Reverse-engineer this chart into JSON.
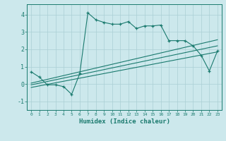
{
  "title": "",
  "xlabel": "Humidex (Indice chaleur)",
  "bg_color": "#cce8ec",
  "grid_color": "#aacfd4",
  "line_color": "#1a7a6e",
  "xlim": [
    -0.5,
    23.5
  ],
  "ylim": [
    -1.5,
    4.6
  ],
  "yticks": [
    -1,
    0,
    1,
    2,
    3,
    4
  ],
  "xticks": [
    0,
    1,
    2,
    3,
    4,
    5,
    6,
    7,
    8,
    9,
    10,
    11,
    12,
    13,
    14,
    15,
    16,
    17,
    18,
    19,
    20,
    21,
    22,
    23
  ],
  "line1_x": [
    0,
    1,
    2,
    3,
    4,
    5,
    6,
    7,
    8,
    9,
    10,
    11,
    12,
    13,
    14,
    15,
    16,
    17,
    18,
    19,
    20,
    21,
    22,
    23
  ],
  "line1_y": [
    0.7,
    0.4,
    -0.05,
    -0.05,
    -0.15,
    -0.6,
    0.6,
    4.1,
    3.7,
    3.55,
    3.45,
    3.45,
    3.6,
    3.2,
    3.35,
    3.35,
    3.4,
    2.5,
    2.5,
    2.5,
    2.2,
    1.65,
    0.75,
    1.9
  ],
  "line2_x": [
    0,
    23
  ],
  "line2_y": [
    0.05,
    2.55
  ],
  "line3_x": [
    0,
    23
  ],
  "line3_y": [
    -0.05,
    2.2
  ],
  "line4_x": [
    0,
    23
  ],
  "line4_y": [
    -0.2,
    1.85
  ]
}
